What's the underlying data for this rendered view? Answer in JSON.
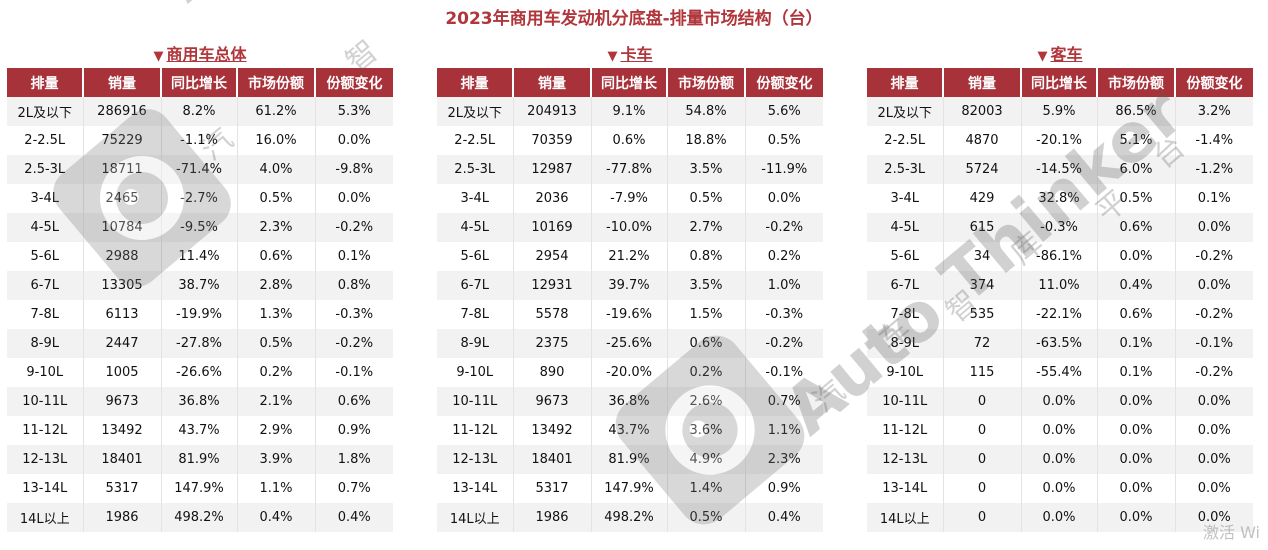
{
  "title": "2023年商用车发动机分底盘-排量市场结构（台）",
  "arrow_icon": "triangle-down-icon",
  "columns": [
    "排量",
    "销量",
    "同比增长",
    "市场份额",
    "份额变化"
  ],
  "watermark": {
    "brand": "Auto Thinker",
    "cn": [
      "汽",
      "车",
      "智",
      "库",
      "平",
      "台"
    ],
    "corner": "激活 Wi"
  },
  "sections": [
    {
      "title": "商用车总体",
      "rows": [
        [
          "2L及以下",
          "286916",
          "8.2%",
          "61.2%",
          "5.3%"
        ],
        [
          "2-2.5L",
          "75229",
          "-1.1%",
          "16.0%",
          "0.0%"
        ],
        [
          "2.5-3L",
          "18711",
          "-71.4%",
          "4.0%",
          "-9.8%"
        ],
        [
          "3-4L",
          "2465",
          "-2.7%",
          "0.5%",
          "0.0%"
        ],
        [
          "4-5L",
          "10784",
          "-9.5%",
          "2.3%",
          "-0.2%"
        ],
        [
          "5-6L",
          "2988",
          "11.4%",
          "0.6%",
          "0.1%"
        ],
        [
          "6-7L",
          "13305",
          "38.7%",
          "2.8%",
          "0.8%"
        ],
        [
          "7-8L",
          "6113",
          "-19.9%",
          "1.3%",
          "-0.3%"
        ],
        [
          "8-9L",
          "2447",
          "-27.8%",
          "0.5%",
          "-0.2%"
        ],
        [
          "9-10L",
          "1005",
          "-26.6%",
          "0.2%",
          "-0.1%"
        ],
        [
          "10-11L",
          "9673",
          "36.8%",
          "2.1%",
          "0.6%"
        ],
        [
          "11-12L",
          "13492",
          "43.7%",
          "2.9%",
          "0.9%"
        ],
        [
          "12-13L",
          "18401",
          "81.9%",
          "3.9%",
          "1.8%"
        ],
        [
          "13-14L",
          "5317",
          "147.9%",
          "1.1%",
          "0.7%"
        ],
        [
          "14L以上",
          "1986",
          "498.2%",
          "0.4%",
          "0.4%"
        ]
      ]
    },
    {
      "title": "卡车",
      "rows": [
        [
          "2L及以下",
          "204913",
          "9.1%",
          "54.8%",
          "5.6%"
        ],
        [
          "2-2.5L",
          "70359",
          "0.6%",
          "18.8%",
          "0.5%"
        ],
        [
          "2.5-3L",
          "12987",
          "-77.8%",
          "3.5%",
          "-11.9%"
        ],
        [
          "3-4L",
          "2036",
          "-7.9%",
          "0.5%",
          "0.0%"
        ],
        [
          "4-5L",
          "10169",
          "-10.0%",
          "2.7%",
          "-0.2%"
        ],
        [
          "5-6L",
          "2954",
          "21.2%",
          "0.8%",
          "0.2%"
        ],
        [
          "6-7L",
          "12931",
          "39.7%",
          "3.5%",
          "1.0%"
        ],
        [
          "7-8L",
          "5578",
          "-19.6%",
          "1.5%",
          "-0.3%"
        ],
        [
          "8-9L",
          "2375",
          "-25.6%",
          "0.6%",
          "-0.2%"
        ],
        [
          "9-10L",
          "890",
          "-20.0%",
          "0.2%",
          "-0.1%"
        ],
        [
          "10-11L",
          "9673",
          "36.8%",
          "2.6%",
          "0.7%"
        ],
        [
          "11-12L",
          "13492",
          "43.7%",
          "3.6%",
          "1.1%"
        ],
        [
          "12-13L",
          "18401",
          "81.9%",
          "4.9%",
          "2.3%"
        ],
        [
          "13-14L",
          "5317",
          "147.9%",
          "1.4%",
          "0.9%"
        ],
        [
          "14L以上",
          "1986",
          "498.2%",
          "0.5%",
          "0.4%"
        ]
      ]
    },
    {
      "title": "客车",
      "rows": [
        [
          "2L及以下",
          "82003",
          "5.9%",
          "86.5%",
          "3.2%"
        ],
        [
          "2-2.5L",
          "4870",
          "-20.1%",
          "5.1%",
          "-1.4%"
        ],
        [
          "2.5-3L",
          "5724",
          "-14.5%",
          "6.0%",
          "-1.2%"
        ],
        [
          "3-4L",
          "429",
          "32.8%",
          "0.5%",
          "0.1%"
        ],
        [
          "4-5L",
          "615",
          "-0.3%",
          "0.6%",
          "0.0%"
        ],
        [
          "5-6L",
          "34",
          "-86.1%",
          "0.0%",
          "-0.2%"
        ],
        [
          "6-7L",
          "374",
          "11.0%",
          "0.4%",
          "0.0%"
        ],
        [
          "7-8L",
          "535",
          "-22.1%",
          "0.6%",
          "-0.2%"
        ],
        [
          "8-9L",
          "72",
          "-63.5%",
          "0.1%",
          "-0.1%"
        ],
        [
          "9-10L",
          "115",
          "-55.4%",
          "0.1%",
          "-0.2%"
        ],
        [
          "10-11L",
          "0",
          "0.0%",
          "0.0%",
          "0.0%"
        ],
        [
          "11-12L",
          "0",
          "0.0%",
          "0.0%",
          "0.0%"
        ],
        [
          "12-13L",
          "0",
          "0.0%",
          "0.0%",
          "0.0%"
        ],
        [
          "13-14L",
          "0",
          "0.0%",
          "0.0%",
          "0.0%"
        ],
        [
          "14L以上",
          "0",
          "0.0%",
          "0.0%",
          "0.0%"
        ]
      ]
    }
  ],
  "chart_data": {
    "type": "table",
    "title": "2023年商用车发动机分底盘-排量市场结构（台）",
    "columns": [
      "排量",
      "销量",
      "同比增长",
      "市场份额",
      "份额变化"
    ],
    "tables": [
      "商用车总体",
      "卡车",
      "客车"
    ]
  }
}
